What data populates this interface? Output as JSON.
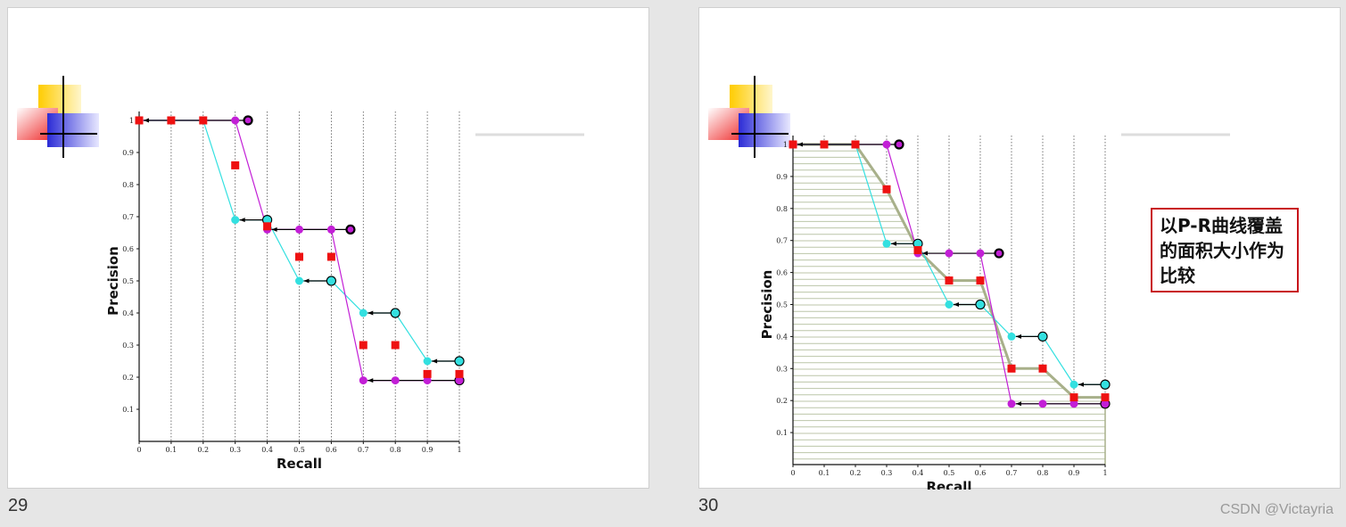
{
  "slides": [
    {
      "number": "29"
    },
    {
      "number": "30",
      "annotation": "以P-R曲线覆盖的面积大小作为比较"
    }
  ],
  "watermark": "CSDN @Victayria",
  "colors": {
    "cyan_series": "#33e0e0",
    "magenta_series": "#c21fd6",
    "red_series": "#ee1111",
    "area_curve": "#a8b08a",
    "hatch": "#bcc6a8",
    "annotation_border": "#c8151b"
  },
  "chart_data": [
    {
      "type": "scatter",
      "title": "",
      "xlabel": "Recall",
      "ylabel": "Precision",
      "xlim": [
        0,
        1
      ],
      "ylim": [
        0,
        1
      ],
      "x_ticks": [
        "0",
        "0.1",
        "0.2",
        "0.3",
        "0.4",
        "0.5",
        "0.6",
        "0.7",
        "0.8",
        "0.9",
        "1"
      ],
      "y_ticks": [
        "0.1",
        "0.2",
        "0.3",
        "0.4",
        "0.5",
        "0.6",
        "0.7",
        "0.8",
        "0.9",
        "1"
      ],
      "grid": "vertical dotted lines",
      "series": [
        {
          "color": "cyan",
          "x": [
            0,
            0.1,
            0.2,
            0.3,
            0.4,
            0.5,
            0.6,
            0.7,
            0.8,
            0.9,
            1
          ],
          "y": [
            1,
            1,
            1,
            0.69,
            0.69,
            0.5,
            0.5,
            0.4,
            0.4,
            0.25,
            0.25
          ],
          "interpolated_x": [
            0.4,
            0.6,
            0.8,
            1
          ],
          "interpolated_y": [
            0.69,
            0.5,
            0.4,
            0.25
          ]
        },
        {
          "color": "magenta",
          "x": [
            0,
            0.1,
            0.2,
            0.3,
            0.4,
            0.5,
            0.6,
            0.7,
            0.8,
            0.9,
            1
          ],
          "y": [
            1,
            1,
            1,
            1,
            0.66,
            0.66,
            0.66,
            0.19,
            0.19,
            0.19,
            0.19
          ],
          "interpolated_x": [
            0.34,
            0.66,
            1
          ],
          "interpolated_y": [
            1,
            0.66,
            0.19
          ]
        },
        {
          "color": "red",
          "x": [
            0,
            0.1,
            0.2,
            0.3,
            0.4,
            0.5,
            0.6,
            0.7,
            0.8,
            0.9,
            1
          ],
          "y": [
            1,
            1,
            1,
            0.86,
            0.67,
            0.575,
            0.575,
            0.3,
            0.3,
            0.21,
            0.21
          ]
        }
      ]
    },
    {
      "type": "area",
      "title": "",
      "xlabel": "Recall",
      "ylabel": "Precision",
      "xlim": [
        0,
        1
      ],
      "ylim": [
        0,
        1
      ],
      "x_ticks": [
        "0",
        "0.1",
        "0.2",
        "0.3",
        "0.4",
        "0.5",
        "0.6",
        "0.7",
        "0.8",
        "0.9",
        "1"
      ],
      "y_ticks": [
        "0.1",
        "0.2",
        "0.3",
        "0.4",
        "0.5",
        "0.6",
        "0.7",
        "0.8",
        "0.9",
        "1"
      ],
      "grid": "vertical dotted lines; area under red curve hatched",
      "series": [
        {
          "color": "cyan",
          "x": [
            0,
            0.1,
            0.2,
            0.3,
            0.4,
            0.5,
            0.6,
            0.7,
            0.8,
            0.9,
            1
          ],
          "y": [
            1,
            1,
            1,
            0.69,
            0.69,
            0.5,
            0.5,
            0.4,
            0.4,
            0.25,
            0.25
          ],
          "interpolated_x": [
            0.4,
            0.6,
            0.8,
            1
          ],
          "interpolated_y": [
            0.69,
            0.5,
            0.4,
            0.25
          ]
        },
        {
          "color": "magenta",
          "x": [
            0,
            0.1,
            0.2,
            0.3,
            0.4,
            0.5,
            0.6,
            0.7,
            0.8,
            0.9,
            1
          ],
          "y": [
            1,
            1,
            1,
            1,
            0.66,
            0.66,
            0.66,
            0.19,
            0.19,
            0.19,
            0.19
          ],
          "interpolated_x": [
            0.34,
            0.66,
            1
          ],
          "interpolated_y": [
            1,
            0.66,
            0.19
          ]
        },
        {
          "color": "red",
          "x": [
            0,
            0.1,
            0.2,
            0.3,
            0.4,
            0.5,
            0.6,
            0.7,
            0.8,
            0.9,
            1
          ],
          "y": [
            1,
            1,
            1,
            0.86,
            0.67,
            0.575,
            0.575,
            0.3,
            0.3,
            0.21,
            0.21
          ]
        }
      ]
    }
  ]
}
